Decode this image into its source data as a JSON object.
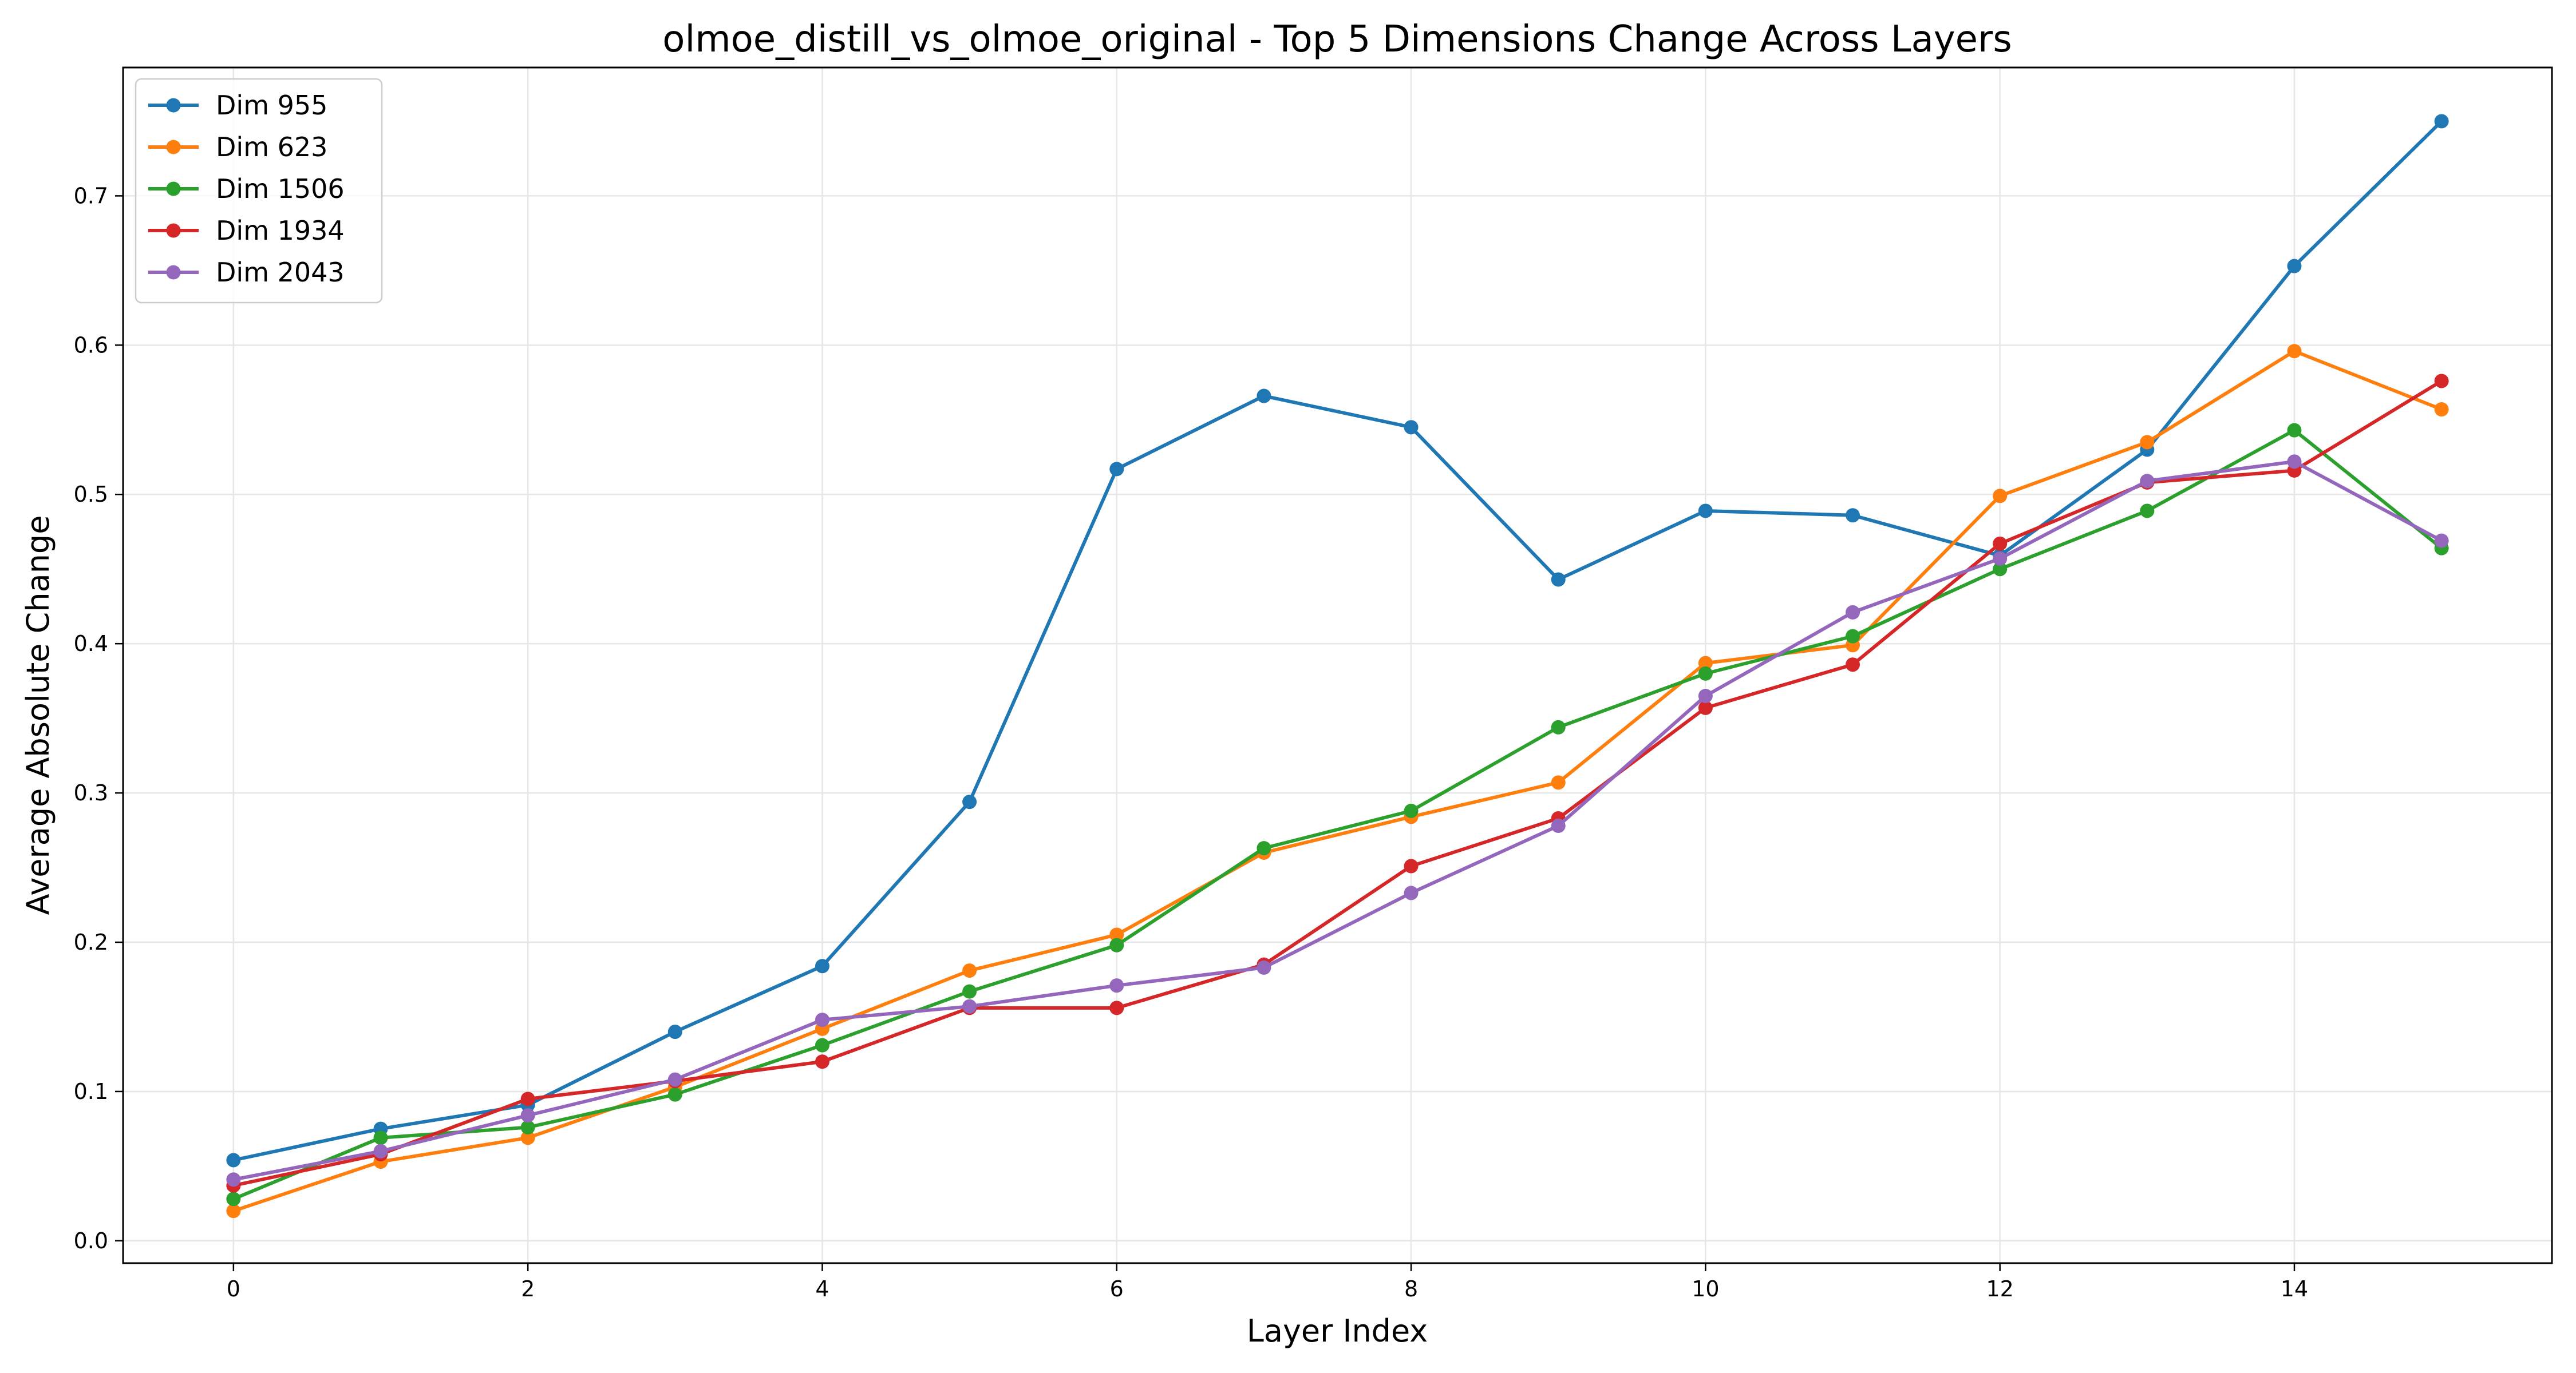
{
  "chart_data": {
    "type": "line",
    "title": "olmoe_distill_vs_olmoe_original - Top 5 Dimensions Change Across Layers",
    "xlabel": "Layer Index",
    "ylabel": "Average Absolute Change",
    "x": [
      0,
      1,
      2,
      3,
      4,
      5,
      6,
      7,
      8,
      9,
      10,
      11,
      12,
      13,
      14,
      15
    ],
    "xlim": [
      -0.75,
      15.75
    ],
    "ylim": [
      -0.015,
      0.786
    ],
    "xticks": [
      0,
      2,
      4,
      6,
      8,
      10,
      12,
      14
    ],
    "xtick_labels": [
      "0",
      "2",
      "4",
      "6",
      "8",
      "10",
      "12",
      "14"
    ],
    "yticks": [
      0.0,
      0.1,
      0.2,
      0.3,
      0.4,
      0.5,
      0.6,
      0.7
    ],
    "ytick_labels": [
      "0.0",
      "0.1",
      "0.2",
      "0.3",
      "0.4",
      "0.5",
      "0.6",
      "0.7"
    ],
    "grid": true,
    "legend_position": "top-left",
    "series": [
      {
        "name": "Dim 955",
        "color": "#1f77b4",
        "values": [
          0.054,
          0.075,
          0.091,
          0.14,
          0.184,
          0.294,
          0.517,
          0.566,
          0.545,
          0.443,
          0.489,
          0.486,
          0.459,
          0.53,
          0.653,
          0.75
        ]
      },
      {
        "name": "Dim 623",
        "color": "#ff7f0e",
        "values": [
          0.02,
          0.053,
          0.069,
          0.103,
          0.142,
          0.181,
          0.205,
          0.26,
          0.284,
          0.307,
          0.387,
          0.399,
          0.499,
          0.535,
          0.596,
          0.557
        ]
      },
      {
        "name": "Dim 1506",
        "color": "#2ca02c",
        "values": [
          0.028,
          0.069,
          0.076,
          0.098,
          0.131,
          0.167,
          0.198,
          0.263,
          0.288,
          0.344,
          0.38,
          0.405,
          0.45,
          0.489,
          0.543,
          0.464
        ]
      },
      {
        "name": "Dim 1934",
        "color": "#d62728",
        "values": [
          0.037,
          0.058,
          0.095,
          0.107,
          0.12,
          0.156,
          0.156,
          0.185,
          0.251,
          0.283,
          0.357,
          0.386,
          0.467,
          0.508,
          0.516,
          0.576
        ]
      },
      {
        "name": "Dim 2043",
        "color": "#9467bd",
        "values": [
          0.041,
          0.06,
          0.084,
          0.108,
          0.148,
          0.157,
          0.171,
          0.183,
          0.233,
          0.278,
          0.365,
          0.421,
          0.457,
          0.509,
          0.522,
          0.469
        ]
      }
    ]
  }
}
